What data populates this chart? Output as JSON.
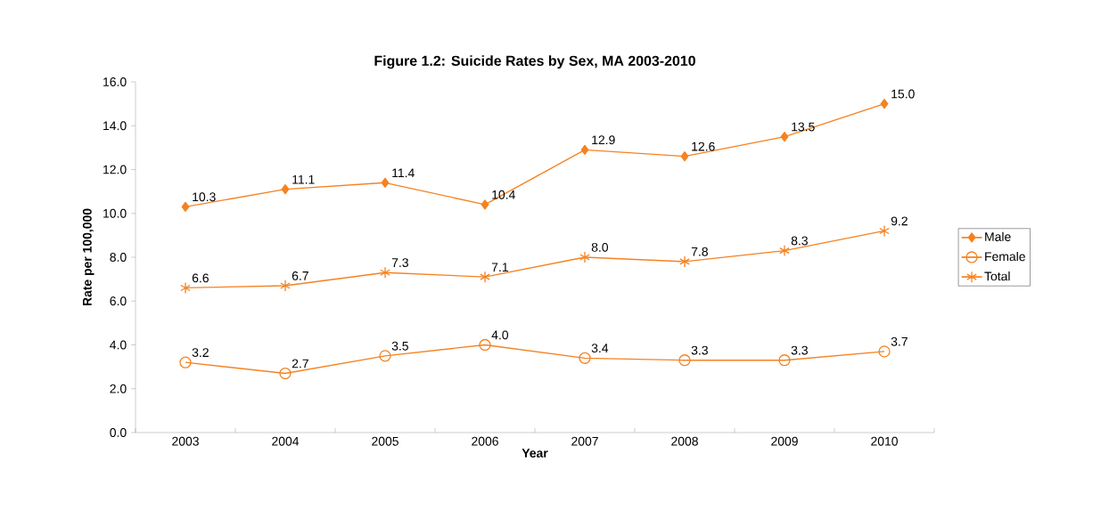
{
  "chart_data": {
    "type": "line",
    "title": "Figure 1.2: Suicide Rates by Sex, MA 2003-2010",
    "xlabel": "Year",
    "ylabel": "Rate per 100,000",
    "categories": [
      "2003",
      "2004",
      "2005",
      "2006",
      "2007",
      "2008",
      "2009",
      "2010"
    ],
    "series": [
      {
        "name": "Male",
        "color": "#f58220",
        "marker": "diamond",
        "values": [
          10.3,
          11.1,
          11.4,
          10.4,
          12.9,
          12.6,
          13.5,
          15.0
        ],
        "value_labels": [
          "10.3",
          "11.1",
          "11.4",
          "10.4",
          "12.9",
          "12.6",
          "13.5",
          "15.0"
        ]
      },
      {
        "name": "Female",
        "color": "#f58220",
        "marker": "circle",
        "values": [
          3.2,
          2.7,
          3.5,
          4.0,
          3.4,
          3.3,
          3.3,
          3.7
        ],
        "value_labels": [
          "3.2",
          "2.7",
          "3.5",
          "4.0",
          "3.4",
          "3.3",
          "3.3",
          "3.7"
        ]
      },
      {
        "name": "Total",
        "color": "#f58220",
        "marker": "cross",
        "values": [
          6.6,
          6.7,
          7.3,
          7.1,
          8.0,
          7.8,
          8.3,
          9.2
        ],
        "value_labels": [
          "6.6",
          "6.7",
          "7.3",
          "7.1",
          "8.0",
          "7.8",
          "8.3",
          "9.2"
        ]
      }
    ],
    "ylim": [
      0,
      16
    ],
    "yticks": [
      {
        "value": 0,
        "label": "0.0"
      },
      {
        "value": 2,
        "label": "2.0"
      },
      {
        "value": 4,
        "label": "4.0"
      },
      {
        "value": 6,
        "label": "6.0"
      },
      {
        "value": 8,
        "label": "8.0"
      },
      {
        "value": 10,
        "label": "10.0"
      },
      {
        "value": 12,
        "label": "12.0"
      },
      {
        "value": 14,
        "label": "14.0"
      },
      {
        "value": 16,
        "label": "16.0"
      }
    ],
    "legend": "right",
    "grid": false
  }
}
